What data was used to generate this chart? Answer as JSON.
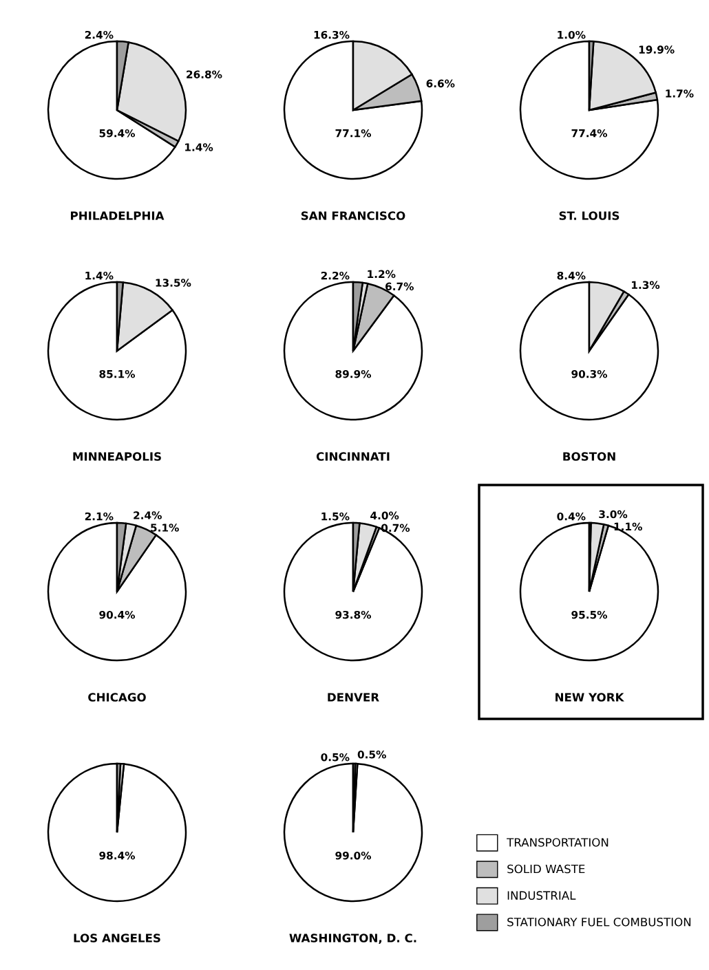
{
  "chart_data": [
    {
      "type": "pie",
      "title": "PHILADELPHIA",
      "categories": [
        "TRANSPORTATION",
        "SOLID WASTE",
        "INDUSTRIAL",
        "STATIONARY FUEL COMBUSTION"
      ],
      "values": [
        59.4,
        1.4,
        26.8,
        2.4
      ],
      "value_labels": [
        "59.4%",
        "1.4%",
        "26.8%",
        "2.4%"
      ],
      "colors": [
        "#ffffff",
        "#bdbdbd",
        "#e0e0e0",
        "#9e9e9e"
      ],
      "legend": "bottom right"
    },
    {
      "type": "pie",
      "title": "SAN FRANCISCO",
      "categories": [
        null,
        null,
        null,
        null
      ],
      "values": [
        77.1,
        6.6,
        16.3,
        null
      ],
      "value_labels": [
        "77.1%",
        "6.6%",
        "16.3%",
        null
      ],
      "colors": [
        "#ffffff",
        "#bdbdbd",
        "#e0e0e0",
        "#9e9e9e"
      ]
    },
    {
      "type": "pie",
      "title": "ST. LOUIS",
      "categories": [
        null,
        null,
        null,
        null
      ],
      "values": [
        77.4,
        1.7,
        19.9,
        1.0
      ],
      "value_labels": [
        "77.4%",
        "1.7%",
        "19.9%",
        "1.0%"
      ],
      "colors": [
        "#ffffff",
        "#bdbdbd",
        "#e0e0e0",
        "#9e9e9e"
      ]
    },
    {
      "type": "pie",
      "title": "MINNEAPOLIS",
      "categories": [
        null,
        null,
        null,
        null
      ],
      "values": [
        85.1,
        null,
        13.5,
        1.4
      ],
      "value_labels": [
        "85.1%",
        null,
        "13.5%",
        "1.4%"
      ],
      "colors": [
        "#ffffff",
        "#bdbdbd",
        "#e0e0e0",
        "#9e9e9e"
      ]
    },
    {
      "type": "pie",
      "title": "CINCINNATI",
      "categories": [
        null,
        null,
        null,
        null
      ],
      "values": [
        89.9,
        6.7,
        1.2,
        2.2
      ],
      "value_labels": [
        "89.9%",
        "6.7%",
        "1.2%",
        "2.2%"
      ],
      "colors": [
        "#ffffff",
        "#bdbdbd",
        "#e0e0e0",
        "#9e9e9e"
      ]
    },
    {
      "type": "pie",
      "title": "BOSTON",
      "categories": [
        null,
        null,
        null,
        null
      ],
      "values": [
        90.3,
        1.3,
        8.4,
        null
      ],
      "value_labels": [
        "90.3%",
        "1.3%",
        "8.4%",
        null
      ],
      "colors": [
        "#ffffff",
        "#bdbdbd",
        "#e0e0e0",
        "#9e9e9e"
      ]
    },
    {
      "type": "pie",
      "title": "CHICAGO",
      "categories": [
        null,
        null,
        null,
        null
      ],
      "values": [
        90.4,
        5.1,
        2.4,
        2.1
      ],
      "value_labels": [
        "90.4%",
        "5.1%",
        "2.4%",
        "2.1%"
      ],
      "colors": [
        "#ffffff",
        "#bdbdbd",
        "#e0e0e0",
        "#9e9e9e"
      ]
    },
    {
      "type": "pie",
      "title": "DENVER",
      "categories": [
        null,
        null,
        null,
        null
      ],
      "values": [
        93.8,
        0.7,
        4.0,
        1.5
      ],
      "value_labels": [
        "93.8%",
        "0.7%",
        "4.0%",
        "1.5%"
      ],
      "colors": [
        "#ffffff",
        "#bdbdbd",
        "#e0e0e0",
        "#9e9e9e"
      ]
    },
    {
      "type": "pie",
      "title": "NEW YORK",
      "categories": [
        null,
        null,
        null,
        null
      ],
      "values": [
        95.5,
        1.1,
        3.0,
        0.4
      ],
      "value_labels": [
        "95.5%",
        "1.1%",
        "3.0%",
        "0.4%"
      ],
      "colors": [
        "#ffffff",
        "#bdbdbd",
        "#e0e0e0",
        "#9e9e9e"
      ]
    },
    {
      "type": "pie",
      "title": "LOS ANGELES",
      "categories": [
        null,
        null,
        null,
        null
      ],
      "values": [
        98.4,
        null,
        0.8,
        0.8
      ],
      "value_labels": [
        "98.4%",
        null,
        null,
        null
      ],
      "colors": [
        "#ffffff",
        "#bdbdbd",
        "#e0e0e0",
        "#9e9e9e"
      ]
    },
    {
      "type": "pie",
      "title": "WASHINGTON, D. C.",
      "categories": [
        null,
        null,
        null,
        null
      ],
      "values": [
        99.0,
        null,
        0.5,
        0.5
      ],
      "value_labels": [
        "99.0%",
        null,
        "0.5%",
        "0.5%"
      ],
      "colors": [
        "#ffffff",
        "#bdbdbd",
        "#e0e0e0",
        "#9e9e9e"
      ]
    }
  ]
}
